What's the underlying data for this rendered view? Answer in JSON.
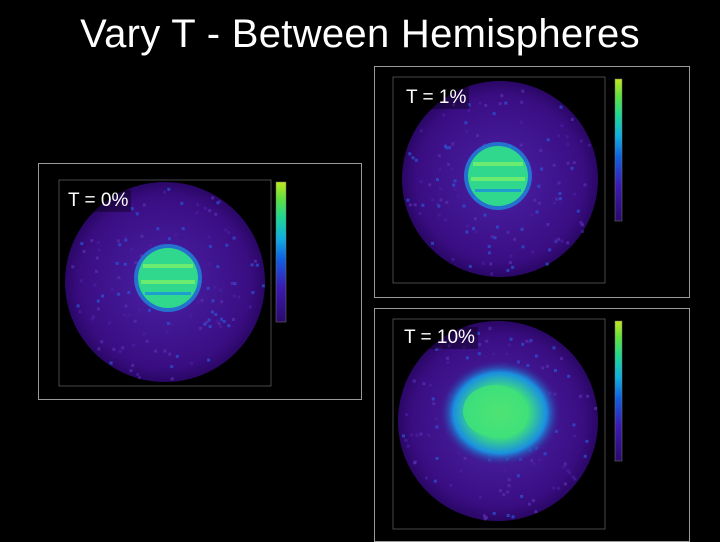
{
  "slide": {
    "title": "Vary T - Between Hemispheres"
  },
  "panels": [
    {
      "id": "t1",
      "label": "T = 1%",
      "colors": {
        "bg": "#3a0d82",
        "speckle": "#5a2fb0",
        "core": "#2fd88c",
        "core_hi": "#7cf06a",
        "rim": "#1a8fe0"
      }
    },
    {
      "id": "t0",
      "label": "T = 0%",
      "colors": {
        "bg": "#3a0d82",
        "speckle": "#5a2fb0",
        "core": "#2fd88c",
        "core_hi": "#7cf06a",
        "rim": "#1a8fe0"
      }
    },
    {
      "id": "t10",
      "label": "T = 10%",
      "colors": {
        "bg": "#3a0d82",
        "speckle": "#5a2fb0",
        "core": "#3fe07a",
        "core_hi": "#a6f24c",
        "rim": "#1a8fe0"
      }
    }
  ],
  "colorbar_colors": [
    "#2a0a6a",
    "#3b1bb0",
    "#1060e0",
    "#10b0e0",
    "#20d890",
    "#60e040",
    "#c0e820"
  ]
}
